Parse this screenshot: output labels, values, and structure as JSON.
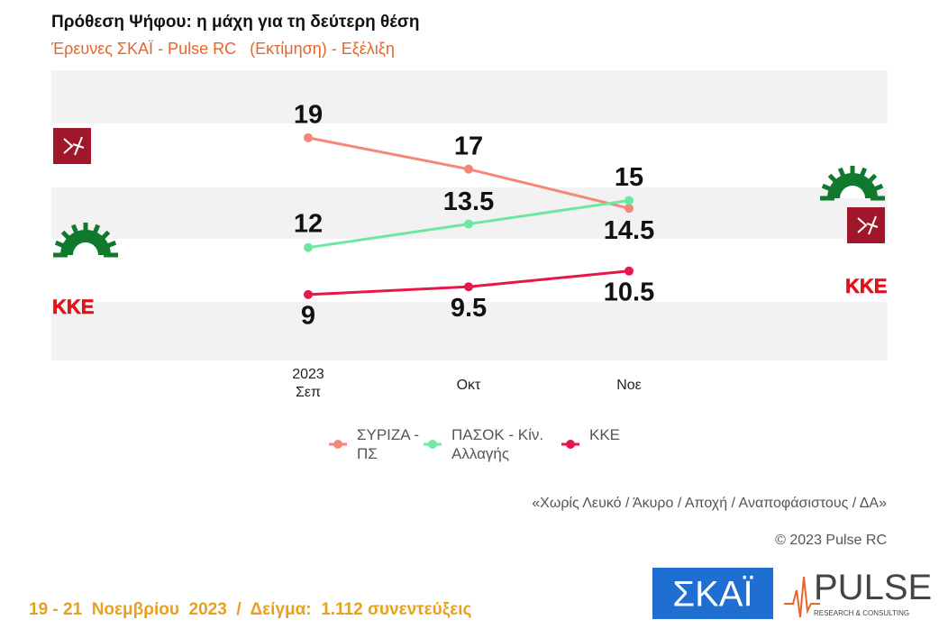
{
  "chart_data": {
    "type": "line",
    "title": "Πρόθεση Ψήφου: η μάχη για τη δεύτερη θέση",
    "subtitle": "Έρευνες ΣΚΑΪ - Pulse RC   (Εκτίμηση) - Εξέλιξη",
    "categories": [
      "2023\nΣεπ",
      "Οκτ",
      "Νοε"
    ],
    "series": [
      {
        "name": "ΣΥΡΙΖΑ - ΠΣ",
        "color": "#f4877a",
        "values": [
          19,
          17,
          14.5
        ]
      },
      {
        "name": "ΠΑΣΟΚ - Κίν. Αλλαγής",
        "color": "#6ee8a0",
        "values": [
          12,
          13.5,
          15
        ]
      },
      {
        "name": "ΚΚΕ",
        "color": "#e8174a",
        "values": [
          9,
          9.5,
          10.5
        ]
      }
    ],
    "ylim": [
      4.8,
      23.3
    ],
    "legend": "bottom"
  },
  "note": "«Χωρίς Λευκό / Άκυρο / Αποχή / Αναποφάσιστους / ΔΑ»",
  "copyright": "© 2023 Pulse RC",
  "footer": "19 - 21  Νοεμβρίου  2023  /  Δείγμα:  1.112 συνεντεύξεις",
  "logos": {
    "skai": "ΣΚΑΪ",
    "pulse": "PULSE",
    "pulse_tagline": "RESEARCH & CONSULTING",
    "kke": "ΚΚΕ"
  }
}
